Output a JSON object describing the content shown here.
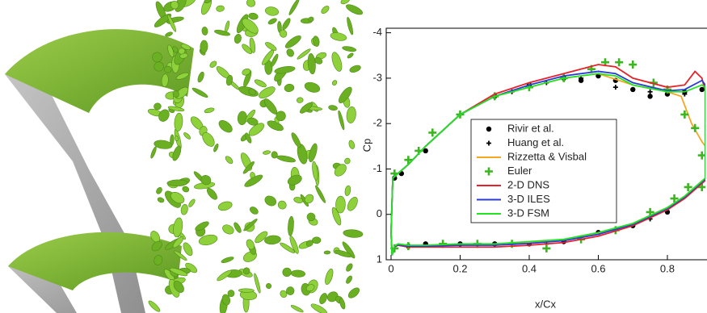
{
  "chart_data": {
    "type": "line",
    "xlabel": "x/Cx",
    "ylabel": "Cp",
    "xlim": [
      -0.014,
      0.91
    ],
    "xticks": [
      0,
      0.2,
      0.4,
      0.6,
      0.8
    ],
    "ylim": [
      -4.1,
      1
    ],
    "yticks": [
      -4,
      -3,
      -2,
      -1,
      0,
      1
    ],
    "y_inverted": true,
    "series": [
      {
        "name": "Rivir et al.",
        "style": "dot",
        "color": "#000000",
        "x": [
          0.01,
          0.03,
          0.1,
          0.3,
          0.4,
          0.5,
          0.55,
          0.6,
          0.65,
          0.7,
          0.75,
          0.8,
          0.85,
          0.9,
          0.8,
          0.7,
          0.6,
          0.5,
          0.4,
          0.3,
          0.2,
          0.1,
          0.05
        ],
        "values": [
          -0.8,
          -0.9,
          -1.4,
          -2.6,
          -2.85,
          -3.0,
          -2.95,
          -3.05,
          -2.95,
          -2.75,
          -2.6,
          -2.65,
          -2.7,
          -2.75,
          -0.05,
          0.25,
          0.4,
          0.6,
          0.65,
          0.65,
          0.65,
          0.65,
          0.7
        ]
      },
      {
        "name": "Huang et al.",
        "style": "smallplus",
        "color": "#000000",
        "x": [
          0.2,
          0.35,
          0.45,
          0.55,
          0.65,
          0.75,
          0.85,
          0.75,
          0.45,
          0.15
        ],
        "values": [
          -2.2,
          -2.7,
          -2.9,
          -3.0,
          -2.8,
          -2.7,
          -2.65,
          0.1,
          0.65,
          0.65
        ]
      },
      {
        "name": "Rizzetta & Visbal",
        "style": "line",
        "color": "#f5a623",
        "x": [
          0,
          0.005,
          0.02,
          0.05,
          0.1,
          0.2,
          0.3,
          0.4,
          0.5,
          0.6,
          0.7,
          0.8,
          0.84,
          0.87,
          0.9,
          0.91,
          0.91,
          0.85,
          0.8,
          0.7,
          0.6,
          0.5,
          0.4,
          0.3,
          0.2,
          0.1,
          0.05,
          0.02,
          0.01,
          0.003,
          0
        ],
        "values": [
          0.4,
          -0.8,
          -0.9,
          -1.1,
          -1.5,
          -2.2,
          -2.6,
          -2.8,
          -3.0,
          -3.1,
          -2.85,
          -2.7,
          -2.6,
          -2.0,
          -1.6,
          -1.5,
          -0.8,
          -0.4,
          -0.15,
          0.2,
          0.42,
          0.57,
          0.62,
          0.66,
          0.66,
          0.69,
          0.69,
          0.66,
          0.7,
          0.9,
          0.4
        ]
      },
      {
        "name": "Euler",
        "style": "plus",
        "color": "#3cb521",
        "x": [
          0.01,
          0.05,
          0.08,
          0.12,
          0.2,
          0.3,
          0.4,
          0.5,
          0.58,
          0.62,
          0.66,
          0.7,
          0.76,
          0.8,
          0.85,
          0.88,
          0.9,
          0.9,
          0.86,
          0.82,
          0.75,
          0.65,
          0.55,
          0.45,
          0.35,
          0.25,
          0.15,
          0.05,
          0.01
        ],
        "values": [
          -0.9,
          -1.2,
          -1.4,
          -1.8,
          -2.2,
          -2.6,
          -2.8,
          -3.0,
          -3.2,
          -3.35,
          -3.35,
          -3.3,
          -2.9,
          -2.75,
          -2.2,
          -1.9,
          -1.3,
          -0.6,
          -0.6,
          -0.35,
          -0.05,
          0.35,
          0.55,
          0.75,
          0.65,
          0.65,
          0.65,
          0.7,
          0.75
        ]
      },
      {
        "name": "2-D DNS",
        "style": "line",
        "color": "#e8202a",
        "x": [
          0,
          0.005,
          0.02,
          0.05,
          0.1,
          0.2,
          0.3,
          0.4,
          0.5,
          0.6,
          0.65,
          0.7,
          0.8,
          0.85,
          0.88,
          0.9,
          0.91,
          0.91,
          0.85,
          0.8,
          0.7,
          0.6,
          0.5,
          0.4,
          0.3,
          0.2,
          0.1,
          0.05,
          0.02,
          0.01,
          0.003,
          0
        ],
        "values": [
          0.4,
          -0.8,
          -0.9,
          -1.1,
          -1.5,
          -2.2,
          -2.65,
          -2.9,
          -3.1,
          -3.3,
          -3.25,
          -3.0,
          -2.8,
          -2.85,
          -3.15,
          -3.0,
          -2.7,
          -0.75,
          -0.35,
          -0.1,
          0.25,
          0.48,
          0.62,
          0.68,
          0.72,
          0.72,
          0.72,
          0.72,
          0.68,
          0.72,
          0.9,
          0.4
        ]
      },
      {
        "name": "3-D ILES",
        "style": "line",
        "color": "#2a3bd8",
        "x": [
          0,
          0.005,
          0.02,
          0.05,
          0.1,
          0.2,
          0.3,
          0.4,
          0.5,
          0.6,
          0.65,
          0.7,
          0.8,
          0.85,
          0.9,
          0.91,
          0.91,
          0.85,
          0.8,
          0.7,
          0.6,
          0.5,
          0.4,
          0.3,
          0.2,
          0.1,
          0.05,
          0.02,
          0.01,
          0.003,
          0
        ],
        "values": [
          0.4,
          -0.8,
          -0.9,
          -1.1,
          -1.5,
          -2.2,
          -2.6,
          -2.85,
          -3.05,
          -3.15,
          -3.1,
          -2.9,
          -2.72,
          -2.75,
          -2.95,
          -2.85,
          -0.78,
          -0.38,
          -0.13,
          0.22,
          0.44,
          0.58,
          0.64,
          0.68,
          0.68,
          0.7,
          0.7,
          0.67,
          0.71,
          0.9,
          0.4
        ]
      },
      {
        "name": "3-D FSM",
        "style": "line",
        "color": "#22e322",
        "x": [
          0,
          0.005,
          0.02,
          0.05,
          0.1,
          0.2,
          0.3,
          0.4,
          0.5,
          0.6,
          0.65,
          0.7,
          0.8,
          0.85,
          0.9,
          0.91,
          0.91,
          0.85,
          0.8,
          0.7,
          0.6,
          0.5,
          0.4,
          0.3,
          0.2,
          0.1,
          0.05,
          0.02,
          0.01,
          0.003,
          0
        ],
        "values": [
          0.4,
          -0.8,
          -0.9,
          -1.1,
          -1.5,
          -2.2,
          -2.6,
          -2.8,
          -3.0,
          -3.1,
          -3.05,
          -2.85,
          -2.7,
          -2.7,
          -2.85,
          -2.8,
          -0.8,
          -0.4,
          -0.15,
          0.2,
          0.4,
          0.55,
          0.6,
          0.65,
          0.65,
          0.68,
          0.68,
          0.65,
          0.7,
          0.9,
          0.4
        ]
      }
    ]
  }
}
